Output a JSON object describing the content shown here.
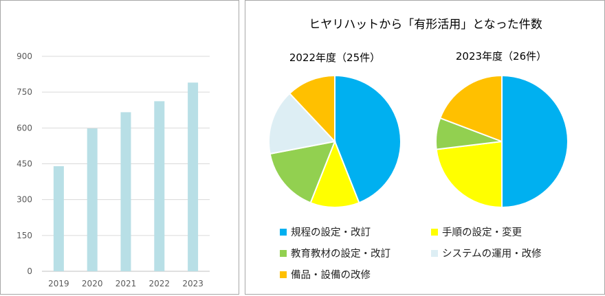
{
  "chart_data": [
    {
      "type": "bar",
      "categories": [
        "2019",
        "2020",
        "2021",
        "2022",
        "2023"
      ],
      "values": [
        440,
        598,
        666,
        712,
        790
      ],
      "title": "",
      "xlabel": "",
      "ylabel": "",
      "ylim": [
        0,
        900
      ],
      "yticks": [
        "0",
        "150",
        "300",
        "450",
        "600",
        "750",
        "900"
      ],
      "grid": true,
      "colors": {
        "bar": "#b8dfe6",
        "grid": "#d9d9d9",
        "axis": "#bfbfbf"
      }
    },
    {
      "type": "pie",
      "title": "ヒヤリハットから「有形活用」となった件数",
      "legend_position": "bottom",
      "legend": [
        {
          "label": "規程の設定・改訂",
          "color": "#00b0f0"
        },
        {
          "label": "手順の設定・変更",
          "color": "#ffff00"
        },
        {
          "label": "教育教材の設定・改訂",
          "color": "#92d050"
        },
        {
          "label": "システムの運用・改修",
          "color": "#ddeef4"
        },
        {
          "label": "備品・設備の改修",
          "color": "#ffc000"
        }
      ],
      "pies": [
        {
          "title": "2022年度（25件）",
          "values": [
            11,
            3,
            4,
            4,
            3
          ]
        },
        {
          "title": "2023年度（26件）",
          "values": [
            13,
            6,
            2,
            0,
            5
          ]
        }
      ]
    }
  ]
}
